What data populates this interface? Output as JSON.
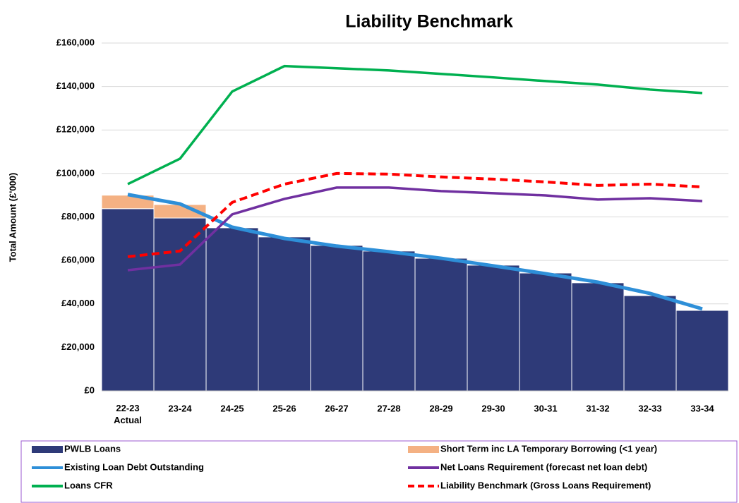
{
  "chart_data": {
    "type": "bar",
    "title": "Liability Benchmark",
    "y_label": "Total Amount (£'000)",
    "categories": [
      "22-23 Actual",
      "23-24",
      "24-25",
      "25-26",
      "26-27",
      "27-28",
      "28-29",
      "29-30",
      "30-31",
      "31-32",
      "32-33",
      "33-34"
    ],
    "ylim": [
      0,
      160000
    ],
    "yticks": [
      {
        "value": 0,
        "label": "£0"
      },
      {
        "value": 20000,
        "label": "£20,000"
      },
      {
        "value": 40000,
        "label": "£40,000"
      },
      {
        "value": 60000,
        "label": "£60,000"
      },
      {
        "value": 80000,
        "label": "£80,000"
      },
      {
        "value": 100000,
        "label": "£100,000"
      },
      {
        "value": 120000,
        "label": "£120,000"
      },
      {
        "value": 140000,
        "label": "£140,000"
      },
      {
        "value": 160000,
        "label": "£160,000"
      }
    ],
    "grid": true,
    "series": [
      {
        "name": "PWLB Loans",
        "kind": "bar",
        "color": "#2e3a78",
        "values": [
          83800,
          79500,
          75000,
          70800,
          66900,
          64300,
          61000,
          57800,
          54200,
          49700,
          43800,
          37000
        ]
      },
      {
        "name": "Short Term inc LA Temporary Borrowing (<1 year)",
        "kind": "bar",
        "color": "#f4b183",
        "values": [
          6200,
          6200,
          0,
          0,
          0,
          0,
          0,
          0,
          0,
          0,
          0,
          0
        ]
      },
      {
        "name": "Existing Loan Debt Outstanding",
        "kind": "line",
        "color": "#2e8fd8",
        "values": [
          90300,
          86000,
          75300,
          70100,
          66600,
          64000,
          61000,
          57500,
          53900,
          50000,
          44800,
          37700
        ]
      },
      {
        "name": "Net Loans Requirement (forecast net loan debt)",
        "kind": "line",
        "color": "#7030a0",
        "values": [
          55500,
          58100,
          81200,
          88300,
          93500,
          93500,
          91900,
          90900,
          89900,
          88000,
          88600,
          87300
        ]
      },
      {
        "name": "Loans CFR",
        "kind": "line",
        "color": "#00b050",
        "values": [
          95100,
          106800,
          137700,
          149400,
          148400,
          147400,
          145800,
          144200,
          142500,
          140900,
          138600,
          137000
        ]
      },
      {
        "name": "Liability Benchmark (Gross Loans Requirement)",
        "kind": "dashed",
        "color": "#ff0000",
        "values": [
          61700,
          64300,
          86700,
          95100,
          100000,
          99700,
          98400,
          97400,
          96100,
          94500,
          95100,
          93800
        ]
      }
    ]
  }
}
